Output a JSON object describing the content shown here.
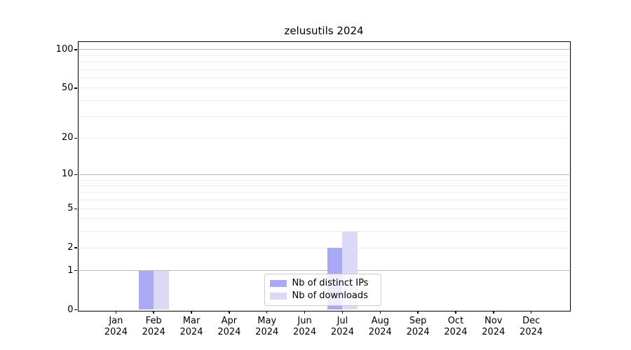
{
  "title": "zelusutils 2024",
  "chart_data": {
    "type": "bar",
    "title": "zelusutils 2024",
    "xlabel": "",
    "ylabel": "",
    "scale": "log1p",
    "grid": "horizontal",
    "legend_position": "lower center inside plot",
    "categories": [
      "Jan 2024",
      "Feb 2024",
      "Mar 2024",
      "Apr 2024",
      "May 2024",
      "Jun 2024",
      "Jul 2024",
      "Aug 2024",
      "Sep 2024",
      "Oct 2024",
      "Nov 2024",
      "Dec 2024"
    ],
    "series": [
      {
        "name": "Nb of distinct IPs",
        "color": "#a9a9f6",
        "values": [
          0,
          1,
          0,
          0,
          0,
          0,
          2,
          0,
          0,
          0,
          0,
          0
        ]
      },
      {
        "name": "Nb of downloads",
        "color": "#dadaf8",
        "values": [
          0,
          1,
          0,
          0,
          0,
          0,
          3,
          0,
          0,
          0,
          0,
          0
        ]
      }
    ],
    "yticks": [
      0,
      1,
      2,
      5,
      10,
      20,
      50,
      100
    ],
    "ylim": [
      0,
      116
    ],
    "major_gridlines": [
      1,
      10,
      100
    ]
  },
  "colors": {
    "series_distinct_ips": "#a9a9f6",
    "series_downloads": "#dadaf8",
    "major_grid": "#bababa",
    "minor_grid": "#ececec",
    "axis": "#000000",
    "legend_border": "#cccccc"
  }
}
